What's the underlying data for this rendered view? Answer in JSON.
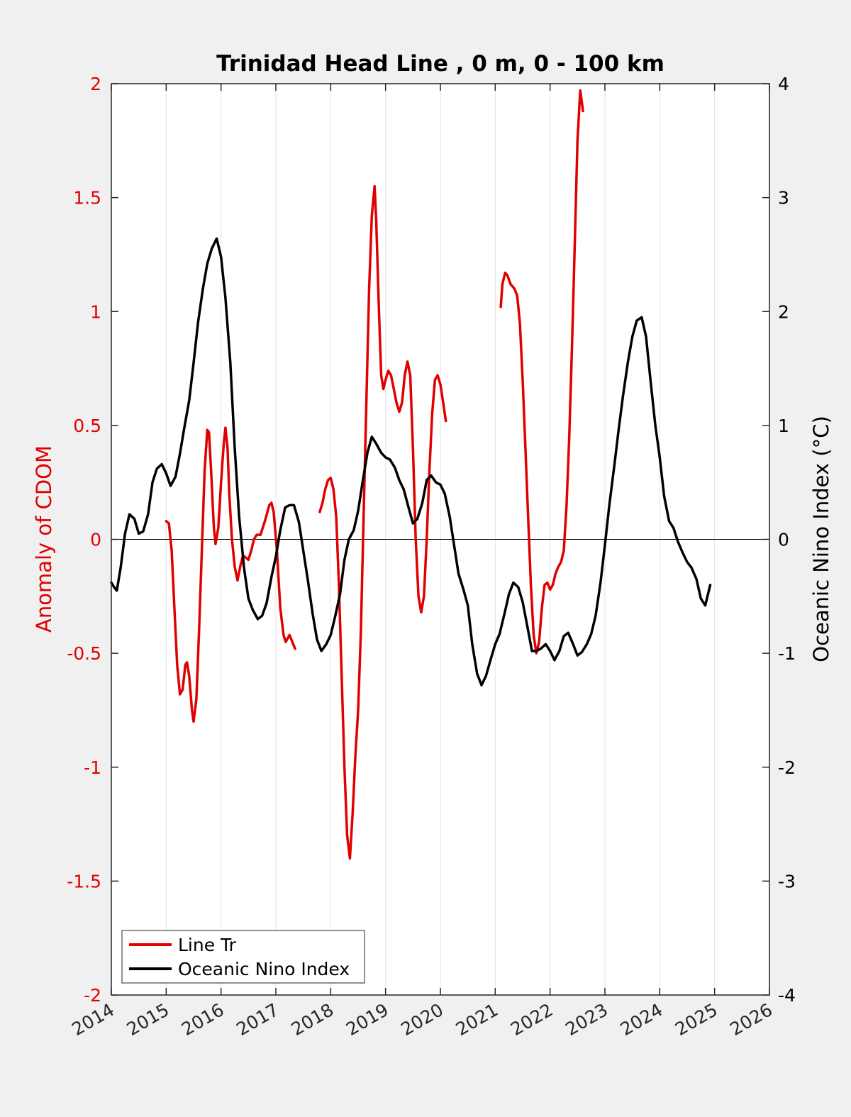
{
  "chart_data": {
    "type": "line",
    "title": "Trinidad Head Line , 0 m, 0 - 100 km",
    "ylabel_left": "Anomaly of CDOM",
    "ylabel_right": "Oceanic Nino Index (°C)",
    "xlabel": "",
    "xlim": [
      2014,
      2026
    ],
    "ylim_left": [
      -2,
      2
    ],
    "ylim_right": [
      -4,
      4
    ],
    "x_ticks": [
      "2014",
      "2015",
      "2016",
      "2017",
      "2018",
      "2019",
      "2020",
      "2021",
      "2022",
      "2023",
      "2024",
      "2025",
      "2026"
    ],
    "y_ticks_left": [
      "2",
      "1.5",
      "1",
      "0.5",
      "0",
      "-0.5",
      "-1",
      "-1.5",
      "-2"
    ],
    "y_ticks_right": [
      "4",
      "3",
      "2",
      "1",
      "0",
      "-1",
      "-2",
      "-3",
      "-4"
    ],
    "grid": "vertical",
    "legend_placement": "bottom-left",
    "colors": {
      "line_tr": "#e00000",
      "oni": "#000000",
      "left_axis": "#e00000",
      "right_axis": "#000000"
    },
    "series": [
      {
        "name": "Line Tr",
        "axis": "left",
        "color": "#e00000",
        "segments": [
          [
            [
              2015.0,
              0.08
            ],
            [
              2015.05,
              0.07
            ],
            [
              2015.1,
              -0.05
            ],
            [
              2015.15,
              -0.3
            ],
            [
              2015.2,
              -0.55
            ],
            [
              2015.25,
              -0.68
            ],
            [
              2015.3,
              -0.66
            ],
            [
              2015.35,
              -0.55
            ],
            [
              2015.38,
              -0.54
            ],
            [
              2015.42,
              -0.6
            ],
            [
              2015.47,
              -0.75
            ],
            [
              2015.5,
              -0.8
            ],
            [
              2015.55,
              -0.7
            ],
            [
              2015.6,
              -0.4
            ],
            [
              2015.65,
              -0.05
            ],
            [
              2015.7,
              0.3
            ],
            [
              2015.75,
              0.48
            ],
            [
              2015.78,
              0.47
            ],
            [
              2015.82,
              0.3
            ],
            [
              2015.87,
              0.05
            ],
            [
              2015.9,
              -0.02
            ],
            [
              2015.95,
              0.05
            ],
            [
              2016.0,
              0.25
            ],
            [
              2016.05,
              0.42
            ],
            [
              2016.08,
              0.49
            ],
            [
              2016.12,
              0.4
            ],
            [
              2016.15,
              0.2
            ],
            [
              2016.2,
              0.0
            ],
            [
              2016.25,
              -0.12
            ],
            [
              2016.3,
              -0.18
            ],
            [
              2016.35,
              -0.12
            ],
            [
              2016.4,
              -0.07
            ],
            [
              2016.45,
              -0.08
            ],
            [
              2016.5,
              -0.09
            ],
            [
              2016.55,
              -0.05
            ],
            [
              2016.6,
              0.0
            ],
            [
              2016.65,
              0.02
            ],
            [
              2016.72,
              0.02
            ],
            [
              2016.8,
              0.08
            ],
            [
              2016.88,
              0.15
            ],
            [
              2016.92,
              0.16
            ],
            [
              2016.96,
              0.12
            ],
            [
              2017.02,
              -0.05
            ],
            [
              2017.08,
              -0.3
            ],
            [
              2017.14,
              -0.42
            ],
            [
              2017.18,
              -0.45
            ],
            [
              2017.25,
              -0.42
            ],
            [
              2017.3,
              -0.45
            ],
            [
              2017.35,
              -0.48
            ]
          ],
          [
            [
              2017.8,
              0.12
            ],
            [
              2017.85,
              0.16
            ],
            [
              2017.9,
              0.22
            ],
            [
              2017.95,
              0.26
            ],
            [
              2018.0,
              0.27
            ],
            [
              2018.05,
              0.22
            ],
            [
              2018.1,
              0.1
            ],
            [
              2018.15,
              -0.2
            ],
            [
              2018.2,
              -0.6
            ],
            [
              2018.25,
              -1.0
            ],
            [
              2018.3,
              -1.3
            ],
            [
              2018.35,
              -1.4
            ],
            [
              2018.4,
              -1.2
            ],
            [
              2018.45,
              -0.95
            ],
            [
              2018.5,
              -0.75
            ],
            [
              2018.55,
              -0.4
            ],
            [
              2018.6,
              0.1
            ],
            [
              2018.65,
              0.6
            ],
            [
              2018.7,
              1.1
            ],
            [
              2018.75,
              1.42
            ],
            [
              2018.8,
              1.55
            ],
            [
              2018.83,
              1.4
            ],
            [
              2018.88,
              1.0
            ],
            [
              2018.92,
              0.72
            ],
            [
              2018.96,
              0.66
            ],
            [
              2019.0,
              0.7
            ],
            [
              2019.05,
              0.74
            ],
            [
              2019.1,
              0.72
            ],
            [
              2019.15,
              0.66
            ],
            [
              2019.2,
              0.6
            ],
            [
              2019.25,
              0.56
            ],
            [
              2019.3,
              0.6
            ],
            [
              2019.35,
              0.72
            ],
            [
              2019.4,
              0.78
            ],
            [
              2019.45,
              0.72
            ],
            [
              2019.5,
              0.4
            ],
            [
              2019.55,
              0.0
            ],
            [
              2019.6,
              -0.25
            ],
            [
              2019.65,
              -0.32
            ],
            [
              2019.7,
              -0.25
            ],
            [
              2019.75,
              0.0
            ],
            [
              2019.8,
              0.3
            ],
            [
              2019.85,
              0.55
            ],
            [
              2019.9,
              0.7
            ],
            [
              2019.95,
              0.72
            ],
            [
              2020.0,
              0.68
            ],
            [
              2020.05,
              0.6
            ],
            [
              2020.1,
              0.52
            ]
          ],
          [
            [
              2021.1,
              1.02
            ],
            [
              2021.13,
              1.12
            ],
            [
              2021.18,
              1.17
            ],
            [
              2021.22,
              1.16
            ],
            [
              2021.28,
              1.12
            ],
            [
              2021.35,
              1.1
            ],
            [
              2021.4,
              1.07
            ],
            [
              2021.45,
              0.95
            ],
            [
              2021.5,
              0.7
            ],
            [
              2021.55,
              0.4
            ],
            [
              2021.6,
              0.1
            ],
            [
              2021.65,
              -0.2
            ],
            [
              2021.7,
              -0.42
            ],
            [
              2021.75,
              -0.5
            ],
            [
              2021.8,
              -0.45
            ],
            [
              2021.85,
              -0.3
            ],
            [
              2021.9,
              -0.2
            ],
            [
              2021.95,
              -0.19
            ],
            [
              2022.0,
              -0.22
            ],
            [
              2022.05,
              -0.2
            ],
            [
              2022.1,
              -0.15
            ],
            [
              2022.15,
              -0.12
            ],
            [
              2022.2,
              -0.1
            ],
            [
              2022.25,
              -0.05
            ],
            [
              2022.3,
              0.15
            ],
            [
              2022.35,
              0.45
            ],
            [
              2022.4,
              0.85
            ],
            [
              2022.45,
              1.3
            ],
            [
              2022.5,
              1.75
            ],
            [
              2022.55,
              1.97
            ],
            [
              2022.6,
              1.88
            ]
          ]
        ]
      },
      {
        "name": "Oceanic Nino Index",
        "axis": "right",
        "color": "#000000",
        "points": [
          [
            2014.0,
            -0.38
          ],
          [
            2014.05,
            -0.42
          ],
          [
            2014.1,
            -0.45
          ],
          [
            2014.17,
            -0.25
          ],
          [
            2014.25,
            0.05
          ],
          [
            2014.33,
            0.22
          ],
          [
            2014.42,
            0.18
          ],
          [
            2014.5,
            0.05
          ],
          [
            2014.58,
            0.07
          ],
          [
            2014.67,
            0.22
          ],
          [
            2014.75,
            0.5
          ],
          [
            2014.83,
            0.62
          ],
          [
            2014.92,
            0.66
          ],
          [
            2015.0,
            0.58
          ],
          [
            2015.08,
            0.47
          ],
          [
            2015.17,
            0.55
          ],
          [
            2015.25,
            0.75
          ],
          [
            2015.33,
            0.98
          ],
          [
            2015.42,
            1.22
          ],
          [
            2015.5,
            1.55
          ],
          [
            2015.58,
            1.9
          ],
          [
            2015.67,
            2.2
          ],
          [
            2015.75,
            2.42
          ],
          [
            2015.83,
            2.55
          ],
          [
            2015.92,
            2.64
          ],
          [
            2016.0,
            2.48
          ],
          [
            2016.08,
            2.12
          ],
          [
            2016.17,
            1.55
          ],
          [
            2016.25,
            0.8
          ],
          [
            2016.33,
            0.2
          ],
          [
            2016.42,
            -0.25
          ],
          [
            2016.5,
            -0.52
          ],
          [
            2016.58,
            -0.62
          ],
          [
            2016.67,
            -0.7
          ],
          [
            2016.75,
            -0.67
          ],
          [
            2016.83,
            -0.56
          ],
          [
            2016.92,
            -0.33
          ],
          [
            2017.0,
            -0.15
          ],
          [
            2017.08,
            0.08
          ],
          [
            2017.17,
            0.28
          ],
          [
            2017.25,
            0.3
          ],
          [
            2017.33,
            0.3
          ],
          [
            2017.42,
            0.15
          ],
          [
            2017.5,
            -0.1
          ],
          [
            2017.58,
            -0.35
          ],
          [
            2017.67,
            -0.65
          ],
          [
            2017.75,
            -0.88
          ],
          [
            2017.83,
            -0.98
          ],
          [
            2017.92,
            -0.92
          ],
          [
            2018.0,
            -0.84
          ],
          [
            2018.08,
            -0.68
          ],
          [
            2018.17,
            -0.48
          ],
          [
            2018.25,
            -0.18
          ],
          [
            2018.33,
            0.0
          ],
          [
            2018.42,
            0.08
          ],
          [
            2018.5,
            0.25
          ],
          [
            2018.58,
            0.5
          ],
          [
            2018.67,
            0.76
          ],
          [
            2018.75,
            0.9
          ],
          [
            2018.83,
            0.84
          ],
          [
            2018.92,
            0.76
          ],
          [
            2019.0,
            0.72
          ],
          [
            2019.08,
            0.7
          ],
          [
            2019.17,
            0.63
          ],
          [
            2019.25,
            0.52
          ],
          [
            2019.33,
            0.44
          ],
          [
            2019.42,
            0.28
          ],
          [
            2019.5,
            0.14
          ],
          [
            2019.58,
            0.18
          ],
          [
            2019.67,
            0.32
          ],
          [
            2019.75,
            0.52
          ],
          [
            2019.83,
            0.56
          ],
          [
            2019.92,
            0.5
          ],
          [
            2020.0,
            0.48
          ],
          [
            2020.08,
            0.4
          ],
          [
            2020.17,
            0.2
          ],
          [
            2020.25,
            -0.05
          ],
          [
            2020.33,
            -0.3
          ],
          [
            2020.42,
            -0.44
          ],
          [
            2020.5,
            -0.58
          ],
          [
            2020.58,
            -0.92
          ],
          [
            2020.67,
            -1.18
          ],
          [
            2020.75,
            -1.28
          ],
          [
            2020.83,
            -1.2
          ],
          [
            2020.92,
            -1.05
          ],
          [
            2021.0,
            -0.92
          ],
          [
            2021.08,
            -0.83
          ],
          [
            2021.17,
            -0.65
          ],
          [
            2021.25,
            -0.48
          ],
          [
            2021.33,
            -0.38
          ],
          [
            2021.42,
            -0.42
          ],
          [
            2021.5,
            -0.55
          ],
          [
            2021.58,
            -0.75
          ],
          [
            2021.67,
            -0.98
          ],
          [
            2021.75,
            -0.98
          ],
          [
            2021.83,
            -0.96
          ],
          [
            2021.92,
            -0.92
          ],
          [
            2022.0,
            -0.98
          ],
          [
            2022.08,
            -1.06
          ],
          [
            2022.17,
            -0.98
          ],
          [
            2022.25,
            -0.85
          ],
          [
            2022.33,
            -0.82
          ],
          [
            2022.42,
            -0.92
          ],
          [
            2022.5,
            -1.02
          ],
          [
            2022.58,
            -0.99
          ],
          [
            2022.67,
            -0.92
          ],
          [
            2022.75,
            -0.83
          ],
          [
            2022.83,
            -0.67
          ],
          [
            2022.92,
            -0.38
          ],
          [
            2023.0,
            -0.05
          ],
          [
            2023.08,
            0.3
          ],
          [
            2023.17,
            0.64
          ],
          [
            2023.25,
            0.96
          ],
          [
            2023.33,
            1.26
          ],
          [
            2023.42,
            1.56
          ],
          [
            2023.5,
            1.78
          ],
          [
            2023.58,
            1.92
          ],
          [
            2023.67,
            1.95
          ],
          [
            2023.75,
            1.78
          ],
          [
            2023.83,
            1.4
          ],
          [
            2023.92,
            1.0
          ],
          [
            2024.0,
            0.72
          ],
          [
            2024.08,
            0.38
          ],
          [
            2024.17,
            0.16
          ],
          [
            2024.25,
            0.1
          ],
          [
            2024.33,
            -0.02
          ],
          [
            2024.42,
            -0.12
          ],
          [
            2024.5,
            -0.2
          ],
          [
            2024.58,
            -0.25
          ],
          [
            2024.67,
            -0.35
          ],
          [
            2024.75,
            -0.52
          ],
          [
            2024.83,
            -0.58
          ],
          [
            2024.92,
            -0.4
          ]
        ]
      }
    ]
  },
  "legend": [
    {
      "label": "Line Tr",
      "color": "#e00000"
    },
    {
      "label": "Oceanic Nino Index",
      "color": "#000000"
    }
  ]
}
